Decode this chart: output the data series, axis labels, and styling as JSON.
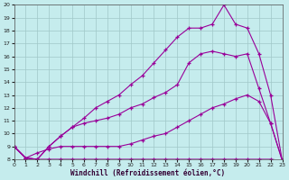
{
  "xlabel": "Windchill (Refroidissement éolien,°C)",
  "bg_color": "#c5eced",
  "grid_color": "#a0c8c8",
  "line_color": "#990099",
  "xlim": [
    0,
    23
  ],
  "ylim": [
    8,
    20
  ],
  "yticks": [
    8,
    9,
    10,
    11,
    12,
    13,
    14,
    15,
    16,
    17,
    18,
    19,
    20
  ],
  "xticks": [
    0,
    1,
    2,
    3,
    4,
    5,
    6,
    7,
    8,
    9,
    10,
    11,
    12,
    13,
    14,
    15,
    16,
    17,
    18,
    19,
    20,
    21,
    22,
    23
  ],
  "line1_x": [
    0,
    1,
    2,
    3,
    4,
    5,
    6,
    7,
    8,
    9,
    10,
    11,
    12,
    13,
    14,
    15,
    16,
    17,
    18,
    19,
    20,
    21,
    22,
    23
  ],
  "line1_y": [
    9.0,
    8.1,
    8.0,
    8.0,
    8.0,
    8.0,
    8.0,
    8.0,
    8.0,
    8.0,
    8.0,
    8.0,
    8.0,
    8.0,
    8.0,
    8.0,
    8.0,
    8.0,
    8.0,
    8.0,
    8.0,
    8.0,
    8.0,
    7.9
  ],
  "line2_x": [
    0,
    1,
    2,
    3,
    4,
    5,
    6,
    7,
    8,
    9,
    10,
    11,
    12,
    13,
    14,
    15,
    16,
    17,
    18,
    19,
    20,
    21,
    22,
    23
  ],
  "line2_y": [
    9.0,
    8.1,
    8.5,
    8.8,
    9.0,
    9.0,
    9.0,
    9.0,
    9.0,
    9.0,
    9.2,
    9.5,
    9.8,
    10.0,
    10.5,
    11.0,
    11.5,
    12.0,
    12.3,
    12.7,
    13.0,
    12.5,
    10.8,
    7.9
  ],
  "line3_x": [
    0,
    1,
    2,
    3,
    4,
    5,
    6,
    7,
    8,
    9,
    10,
    11,
    12,
    13,
    14,
    15,
    16,
    17,
    18,
    19,
    20,
    21,
    22,
    23
  ],
  "line3_y": [
    9.0,
    8.1,
    8.0,
    9.0,
    9.8,
    10.5,
    10.8,
    11.0,
    11.2,
    11.5,
    12.0,
    12.3,
    12.8,
    13.2,
    13.8,
    15.5,
    16.2,
    16.4,
    16.2,
    16.0,
    16.2,
    13.5,
    10.8,
    7.9
  ],
  "line4_x": [
    0,
    1,
    2,
    3,
    4,
    5,
    6,
    7,
    8,
    9,
    10,
    11,
    12,
    13,
    14,
    15,
    16,
    17,
    18,
    19,
    20,
    21,
    22,
    23
  ],
  "line4_y": [
    9.0,
    8.1,
    8.0,
    9.0,
    9.8,
    10.5,
    11.2,
    12.0,
    12.5,
    13.0,
    13.8,
    14.5,
    15.5,
    16.5,
    17.5,
    18.2,
    18.2,
    18.5,
    20.0,
    18.5,
    18.2,
    16.2,
    13.0,
    7.9
  ]
}
